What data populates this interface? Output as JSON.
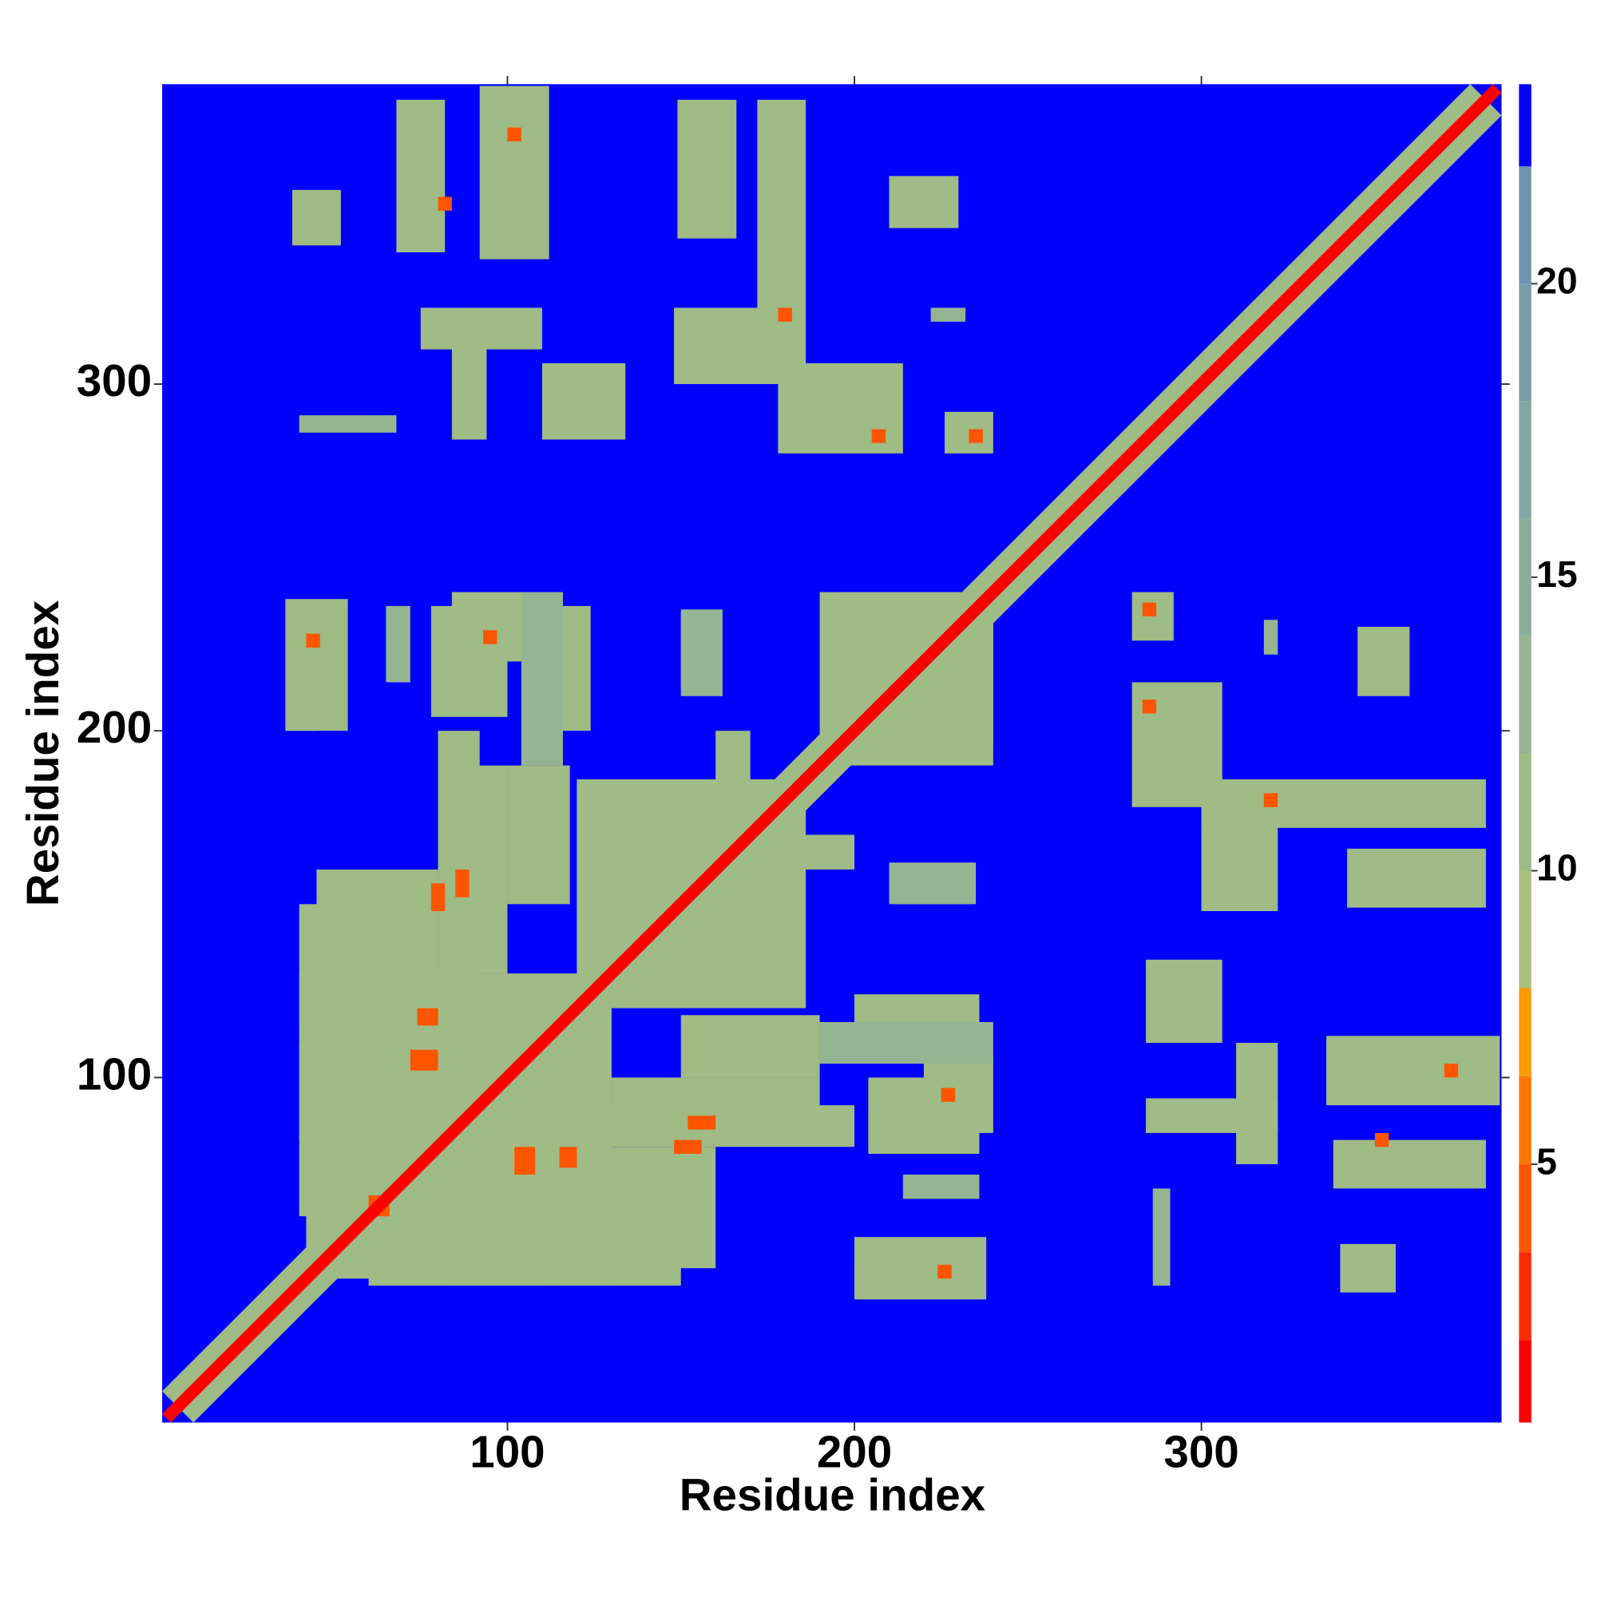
{
  "chart_data": {
    "type": "heatmap",
    "x_label": "Residue index",
    "y_label": "Residue index",
    "xlim": [
      0.5,
      386.5
    ],
    "ylim": [
      0.5,
      386.5
    ],
    "xticks": [
      100,
      200,
      300
    ],
    "yticks": [
      100,
      200,
      300
    ],
    "symmetric": true,
    "background": 23,
    "diagonal": {
      "value": 2,
      "halo": 12
    },
    "cells": [
      [
        38,
        52,
        340,
        356,
        12
      ],
      [
        68,
        82,
        338,
        382,
        12
      ],
      [
        92,
        112,
        336,
        386,
        12
      ],
      [
        75,
        110,
        310,
        322,
        12
      ],
      [
        84,
        94,
        284,
        322,
        12
      ],
      [
        110,
        134,
        284,
        306,
        12
      ],
      [
        149,
        166,
        342,
        382,
        12
      ],
      [
        172,
        186,
        300,
        382,
        12
      ],
      [
        148,
        178,
        300,
        322,
        12
      ],
      [
        178,
        214,
        280,
        306,
        12
      ],
      [
        210,
        230,
        345,
        360,
        12
      ],
      [
        226,
        240,
        280,
        292,
        12
      ],
      [
        40,
        68,
        286,
        291,
        13
      ],
      [
        222,
        232,
        318,
        322,
        14
      ],
      [
        37,
        45,
        200,
        236,
        12
      ],
      [
        65,
        72,
        214,
        236,
        13
      ],
      [
        78,
        100,
        204,
        236,
        12
      ],
      [
        108,
        124,
        200,
        236,
        12
      ],
      [
        150,
        160,
        212,
        234,
        13
      ],
      [
        190,
        240,
        196,
        240,
        11
      ],
      [
        80,
        92,
        120,
        200,
        12
      ],
      [
        100,
        118,
        150,
        190,
        12
      ],
      [
        120,
        180,
        130,
        186,
        11
      ],
      [
        45,
        80,
        125,
        160,
        12
      ],
      [
        40,
        130,
        60,
        130,
        11
      ],
      [
        45,
        75,
        42,
        60,
        12
      ],
      [
        82,
        110,
        40,
        58,
        12
      ],
      [
        115,
        150,
        40,
        60,
        12
      ],
      [
        200,
        238,
        36,
        54,
        12
      ],
      [
        220,
        240,
        84,
        106,
        12
      ],
      [
        190,
        240,
        104,
        116,
        13
      ],
      [
        210,
        235,
        150,
        162,
        13
      ],
      [
        160,
        200,
        160,
        170,
        12
      ],
      [
        130,
        190,
        85,
        100,
        12
      ],
      [
        100,
        104,
        370,
        374,
        5
      ],
      [
        80,
        84,
        350,
        354,
        5
      ],
      [
        178,
        182,
        318,
        322,
        5
      ],
      [
        205,
        209,
        283,
        287,
        5
      ],
      [
        233,
        237,
        283,
        287,
        5
      ],
      [
        85,
        89,
        152,
        160,
        5
      ],
      [
        60,
        66,
        60,
        66,
        5
      ],
      [
        74,
        80,
        115,
        120,
        5
      ],
      [
        148,
        156,
        78,
        82,
        5
      ],
      [
        102,
        108,
        72,
        80,
        5
      ],
      [
        225,
        229,
        93,
        97,
        5
      ],
      [
        224,
        228,
        42,
        46,
        5
      ]
    ],
    "colorbar": {
      "levels": [
        0.6,
        2,
        3.5,
        5,
        6.5,
        8,
        10,
        12,
        14,
        16,
        18,
        20,
        22,
        23.4
      ],
      "colors": [
        "#ff0000",
        "#ff2a00",
        "#ff5500",
        "#ff7700",
        "#ff9a00",
        "#a9c07a",
        "#9fbb86",
        "#95b592",
        "#8baf9c",
        "#82a8a4",
        "#799fac",
        "#6f95b2",
        "#0000ff"
      ],
      "ticks": [
        5,
        10,
        15,
        20
      ]
    }
  }
}
